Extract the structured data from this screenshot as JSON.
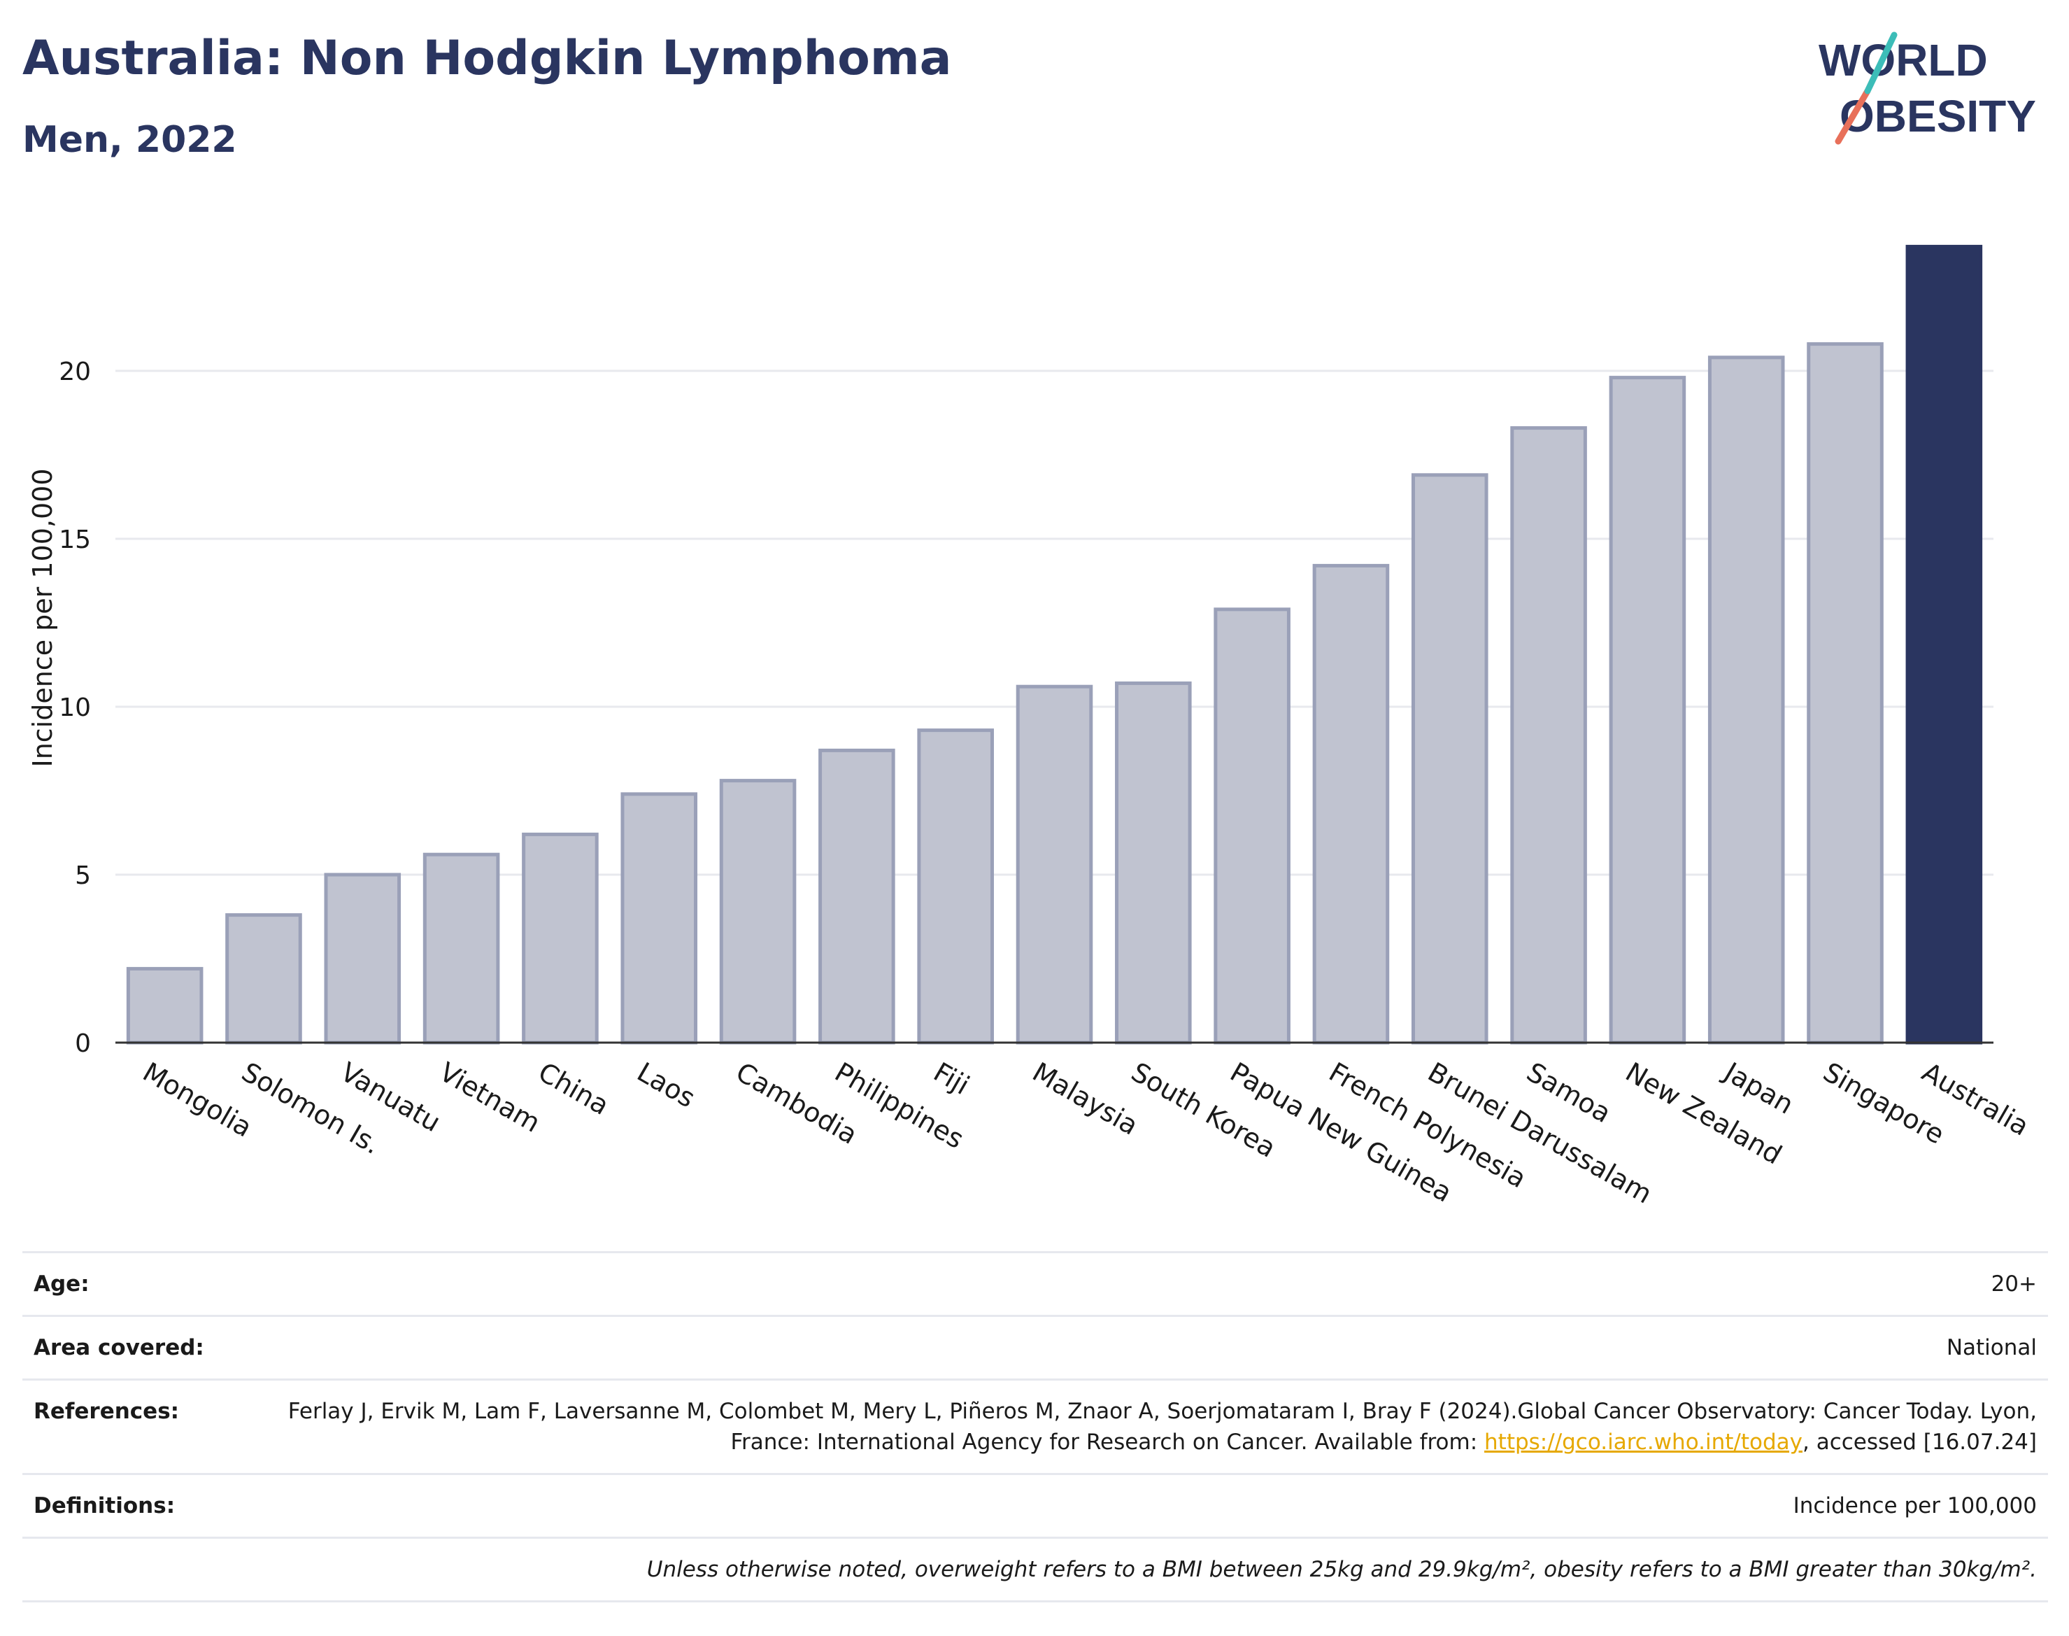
{
  "header": {
    "title": "Australia: Non Hodgkin Lymphoma",
    "subtitle": "Men, 2022"
  },
  "logo": {
    "line1": "WORLD",
    "line2": "OBESITY"
  },
  "colors": {
    "highlight": "#2a3560",
    "bar": "#c0c3d0",
    "bar_border": "#9aa0b8",
    "grid": "#e8e9ee",
    "link": "#e6a800"
  },
  "chart_data": {
    "type": "bar",
    "ylabel": "Incidence per 100,000",
    "ylim": [
      0,
      24
    ],
    "yticks": [
      0,
      5,
      10,
      15,
      20
    ],
    "grid": true,
    "highlight": "Australia",
    "categories": [
      "Mongolia",
      "Solomon Is.",
      "Vanuatu",
      "Vietnam",
      "China",
      "Laos",
      "Cambodia",
      "Philippines",
      "Fiji",
      "Malaysia",
      "South Korea",
      "Papua New Guinea",
      "French Polynesia",
      "Brunei Darussalam",
      "Samoa",
      "New Zealand",
      "Japan",
      "Singapore",
      "Australia"
    ],
    "values": [
      2.2,
      3.8,
      5.0,
      5.6,
      6.2,
      7.4,
      7.8,
      8.7,
      9.3,
      10.6,
      10.7,
      12.9,
      14.2,
      16.9,
      18.3,
      19.8,
      20.4,
      20.8,
      23.7
    ]
  },
  "meta": {
    "age_label": "Age:",
    "age_value": "20+",
    "area_label": "Area covered:",
    "area_value": "National",
    "ref_label": "References:",
    "ref_text_1": "Ferlay J, Ervik M, Lam F, Laversanne M, Colombet M, Mery L, Piñeros M, Znaor A, Soerjomataram I, Bray F (2024).Global Cancer Observatory: Cancer Today. Lyon, France: International Agency for Research on Cancer. Available from: ",
    "ref_link": "https://gco.iarc.who.int/today",
    "ref_text_2": ", accessed [16.07.24]",
    "def_label": "Definitions:",
    "def_value": "Incidence per 100,000",
    "note": "Unless otherwise noted, overweight refers to a BMI between 25kg and 29.9kg/m², obesity refers to a BMI greater than 30kg/m²."
  }
}
